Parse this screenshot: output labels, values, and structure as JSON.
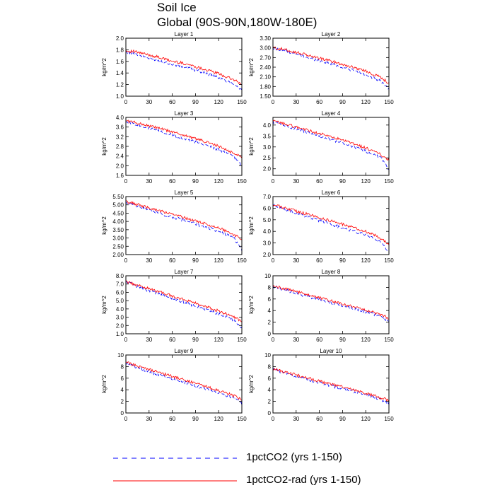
{
  "title": "Soil Ice",
  "subtitle": "Global (90S-90N,180W-180E)",
  "legend": [
    {
      "label": "1pctCO2 (yrs 1-150)",
      "color": "#0000ff",
      "dash": true
    },
    {
      "label": "1pctCO2-rad (yrs 1-150)",
      "color": "#ff0000",
      "dash": false
    }
  ],
  "chart_data": [
    {
      "type": "line",
      "title": "Layer 1",
      "ylabel": "kg/m^2",
      "xlim": [
        0,
        150
      ],
      "ylim": [
        1.0,
        2.0
      ],
      "xticks": [
        "0",
        "30",
        "60",
        "90",
        "120",
        "150"
      ],
      "yticks": [
        "1.0",
        "1.2",
        "1.4",
        "1.6",
        "1.8",
        "2.0"
      ],
      "series": [
        {
          "name": "1pctCO2 (yrs 1-150)",
          "x": [
            0,
            10,
            20,
            30,
            40,
            50,
            60,
            70,
            80,
            90,
            100,
            110,
            120,
            130,
            140,
            150
          ],
          "values": [
            1.76,
            1.74,
            1.7,
            1.65,
            1.63,
            1.59,
            1.55,
            1.52,
            1.49,
            1.45,
            1.41,
            1.36,
            1.32,
            1.26,
            1.22,
            1.1
          ]
        },
        {
          "name": "1pctCO2-rad (yrs 1-150)",
          "x": [
            0,
            10,
            20,
            30,
            40,
            50,
            60,
            70,
            80,
            90,
            100,
            110,
            120,
            130,
            140,
            150
          ],
          "values": [
            1.78,
            1.77,
            1.74,
            1.71,
            1.68,
            1.64,
            1.6,
            1.58,
            1.55,
            1.51,
            1.47,
            1.43,
            1.39,
            1.33,
            1.28,
            1.2
          ]
        }
      ]
    },
    {
      "type": "line",
      "title": "Layer 2",
      "ylabel": "kg/m^2",
      "xlim": [
        0,
        150
      ],
      "ylim": [
        1.5,
        3.3
      ],
      "xticks": [
        "0",
        "30",
        "60",
        "90",
        "120",
        "150"
      ],
      "yticks": [
        "1.50",
        "1.80",
        "2.10",
        "2.40",
        "2.70",
        "3.00",
        "3.30"
      ],
      "series": [
        {
          "name": "1pctCO2 (yrs 1-150)",
          "x": [
            0,
            10,
            20,
            30,
            40,
            50,
            60,
            70,
            80,
            90,
            100,
            110,
            120,
            130,
            140,
            150
          ],
          "values": [
            2.98,
            2.95,
            2.88,
            2.8,
            2.73,
            2.66,
            2.6,
            2.54,
            2.47,
            2.4,
            2.33,
            2.25,
            2.17,
            2.06,
            1.96,
            1.72
          ]
        },
        {
          "name": "1pctCO2-rad (yrs 1-150)",
          "x": [
            0,
            10,
            20,
            30,
            40,
            50,
            60,
            70,
            80,
            90,
            100,
            110,
            120,
            130,
            140,
            150
          ],
          "values": [
            3.0,
            2.97,
            2.92,
            2.86,
            2.8,
            2.74,
            2.68,
            2.62,
            2.56,
            2.49,
            2.42,
            2.36,
            2.28,
            2.18,
            2.08,
            1.9
          ]
        }
      ]
    },
    {
      "type": "line",
      "title": "Layer 3",
      "ylabel": "kg/m^2",
      "xlim": [
        0,
        150
      ],
      "ylim": [
        1.6,
        4.0
      ],
      "xticks": [
        "0",
        "30",
        "60",
        "90",
        "120",
        "150"
      ],
      "yticks": [
        "1.6",
        "2.0",
        "2.4",
        "2.8",
        "3.2",
        "3.6",
        "4.0"
      ],
      "series": [
        {
          "name": "1pctCO2 (yrs 1-150)",
          "x": [
            0,
            10,
            20,
            30,
            40,
            50,
            60,
            70,
            80,
            90,
            100,
            110,
            120,
            130,
            140,
            150
          ],
          "values": [
            3.82,
            3.75,
            3.66,
            3.55,
            3.46,
            3.36,
            3.27,
            3.18,
            3.08,
            2.98,
            2.88,
            2.78,
            2.66,
            2.52,
            2.38,
            2.0
          ]
        },
        {
          "name": "1pctCO2-rad (yrs 1-150)",
          "x": [
            0,
            10,
            20,
            30,
            40,
            50,
            60,
            70,
            80,
            90,
            100,
            110,
            120,
            130,
            140,
            150
          ],
          "values": [
            3.86,
            3.8,
            3.73,
            3.65,
            3.57,
            3.48,
            3.4,
            3.31,
            3.22,
            3.12,
            3.02,
            2.92,
            2.8,
            2.66,
            2.5,
            2.38
          ]
        }
      ]
    },
    {
      "type": "line",
      "title": "Layer 4",
      "ylabel": "kg/m^2",
      "xlim": [
        0,
        150
      ],
      "ylim": [
        1.7,
        4.35
      ],
      "xticks": [
        "0",
        "30",
        "60",
        "90",
        "120",
        "150"
      ],
      "yticks": [
        "2.0",
        "2.5",
        "3.0",
        "3.5",
        "4.0"
      ],
      "series": [
        {
          "name": "1pctCO2 (yrs 1-150)",
          "x": [
            0,
            10,
            20,
            30,
            40,
            50,
            60,
            70,
            80,
            90,
            100,
            110,
            120,
            130,
            140,
            150
          ],
          "values": [
            4.15,
            4.05,
            3.94,
            3.82,
            3.71,
            3.6,
            3.5,
            3.39,
            3.28,
            3.17,
            3.06,
            2.94,
            2.81,
            2.66,
            2.48,
            1.95
          ]
        },
        {
          "name": "1pctCO2-rad (yrs 1-150)",
          "x": [
            0,
            10,
            20,
            30,
            40,
            50,
            60,
            70,
            80,
            90,
            100,
            110,
            120,
            130,
            140,
            150
          ],
          "values": [
            4.18,
            4.1,
            4.01,
            3.91,
            3.81,
            3.71,
            3.61,
            3.51,
            3.41,
            3.3,
            3.19,
            3.07,
            2.95,
            2.8,
            2.64,
            2.4
          ]
        }
      ]
    },
    {
      "type": "line",
      "title": "Layer 5",
      "ylabel": "kg/m^2",
      "xlim": [
        0,
        150
      ],
      "ylim": [
        2.0,
        5.5
      ],
      "xticks": [
        "0",
        "30",
        "60",
        "90",
        "120",
        "150"
      ],
      "yticks": [
        "2.00",
        "2.50",
        "3.00",
        "3.50",
        "4.00",
        "4.50",
        "5.00",
        "5.50"
      ],
      "series": [
        {
          "name": "1pctCO2 (yrs 1-150)",
          "x": [
            0,
            10,
            20,
            30,
            40,
            50,
            60,
            70,
            80,
            90,
            100,
            110,
            120,
            130,
            140,
            150
          ],
          "values": [
            5.15,
            5.0,
            4.84,
            4.68,
            4.54,
            4.4,
            4.26,
            4.13,
            3.99,
            3.85,
            3.7,
            3.56,
            3.4,
            3.2,
            2.98,
            2.25
          ]
        },
        {
          "name": "1pctCO2-rad (yrs 1-150)",
          "x": [
            0,
            10,
            20,
            30,
            40,
            50,
            60,
            70,
            80,
            90,
            100,
            110,
            120,
            130,
            140,
            150
          ],
          "values": [
            5.2,
            5.08,
            4.95,
            4.82,
            4.69,
            4.56,
            4.43,
            4.3,
            4.17,
            4.04,
            3.9,
            3.76,
            3.61,
            3.42,
            3.18,
            2.95
          ]
        }
      ]
    },
    {
      "type": "line",
      "title": "Layer 6",
      "ylabel": "kg/m^2",
      "xlim": [
        0,
        150
      ],
      "ylim": [
        2.0,
        7.0
      ],
      "xticks": [
        "0",
        "30",
        "60",
        "90",
        "120",
        "150"
      ],
      "yticks": [
        "2.0",
        "3.0",
        "4.0",
        "5.0",
        "6.0",
        "7.0"
      ],
      "series": [
        {
          "name": "1pctCO2 (yrs 1-150)",
          "x": [
            0,
            10,
            20,
            30,
            40,
            50,
            60,
            70,
            80,
            90,
            100,
            110,
            120,
            130,
            140,
            150
          ],
          "values": [
            6.25,
            6.02,
            5.8,
            5.56,
            5.35,
            5.14,
            4.94,
            4.74,
            4.53,
            4.32,
            4.11,
            3.9,
            3.67,
            3.4,
            3.08,
            2.25
          ]
        },
        {
          "name": "1pctCO2-rad (yrs 1-150)",
          "x": [
            0,
            10,
            20,
            30,
            40,
            50,
            60,
            70,
            80,
            90,
            100,
            110,
            120,
            130,
            140,
            150
          ],
          "values": [
            6.3,
            6.12,
            5.94,
            5.75,
            5.56,
            5.38,
            5.19,
            5.0,
            4.81,
            4.61,
            4.41,
            4.2,
            3.98,
            3.72,
            3.38,
            2.85
          ]
        }
      ]
    },
    {
      "type": "line",
      "title": "Layer 7",
      "ylabel": "kg/m^2",
      "xlim": [
        0,
        150
      ],
      "ylim": [
        1.0,
        8.0
      ],
      "xticks": [
        "0",
        "30",
        "60",
        "90",
        "120",
        "150"
      ],
      "yticks": [
        "1.0",
        "2.0",
        "3.0",
        "4.0",
        "5.0",
        "6.0",
        "7.0",
        "8.0"
      ],
      "series": [
        {
          "name": "1pctCO2 (yrs 1-150)",
          "x": [
            0,
            10,
            20,
            30,
            40,
            50,
            60,
            70,
            80,
            90,
            100,
            110,
            120,
            130,
            140,
            150
          ],
          "values": [
            7.25,
            6.9,
            6.55,
            6.2,
            5.88,
            5.57,
            5.27,
            4.97,
            4.66,
            4.35,
            4.05,
            3.74,
            3.42,
            3.05,
            2.65,
            1.75
          ]
        },
        {
          "name": "1pctCO2-rad (yrs 1-150)",
          "x": [
            0,
            10,
            20,
            30,
            40,
            50,
            60,
            70,
            80,
            90,
            100,
            110,
            120,
            130,
            140,
            150
          ],
          "values": [
            7.3,
            7.0,
            6.72,
            6.43,
            6.15,
            5.86,
            5.57,
            5.28,
            4.99,
            4.69,
            4.39,
            4.08,
            3.75,
            3.38,
            2.95,
            2.5
          ]
        }
      ]
    },
    {
      "type": "line",
      "title": "Layer 8",
      "ylabel": "kg/m^2",
      "xlim": [
        0,
        150
      ],
      "ylim": [
        0,
        10
      ],
      "xticks": [
        "0",
        "30",
        "60",
        "90",
        "120",
        "150"
      ],
      "yticks": [
        "0",
        "2",
        "4",
        "6",
        "8",
        "10"
      ],
      "series": [
        {
          "name": "1pctCO2 (yrs 1-150)",
          "x": [
            0,
            10,
            20,
            30,
            40,
            50,
            60,
            70,
            80,
            90,
            100,
            110,
            120,
            130,
            140,
            150
          ],
          "values": [
            8.2,
            7.8,
            7.4,
            7.0,
            6.6,
            6.25,
            5.9,
            5.55,
            5.2,
            4.85,
            4.5,
            4.15,
            3.8,
            3.4,
            2.95,
            2.0
          ]
        },
        {
          "name": "1pctCO2-rad (yrs 1-150)",
          "x": [
            0,
            10,
            20,
            30,
            40,
            50,
            60,
            70,
            80,
            90,
            100,
            110,
            120,
            130,
            140,
            150
          ],
          "values": [
            8.3,
            7.95,
            7.6,
            7.25,
            6.9,
            6.55,
            6.2,
            5.85,
            5.5,
            5.15,
            4.8,
            4.45,
            4.1,
            3.7,
            3.25,
            2.7
          ]
        }
      ]
    },
    {
      "type": "line",
      "title": "Layer 9",
      "ylabel": "kg/m^2",
      "xlim": [
        0,
        150
      ],
      "ylim": [
        0,
        10
      ],
      "xticks": [
        "0",
        "30",
        "60",
        "90",
        "120",
        "150"
      ],
      "yticks": [
        "0",
        "2",
        "4",
        "6",
        "8",
        "10"
      ],
      "series": [
        {
          "name": "1pctCO2 (yrs 1-150)",
          "x": [
            0,
            10,
            20,
            30,
            40,
            50,
            60,
            70,
            80,
            90,
            100,
            110,
            120,
            130,
            140,
            150
          ],
          "values": [
            8.6,
            8.1,
            7.6,
            7.1,
            6.7,
            6.3,
            5.9,
            5.5,
            5.1,
            4.7,
            4.3,
            3.9,
            3.5,
            3.05,
            2.6,
            1.6
          ]
        },
        {
          "name": "1pctCO2-rad (yrs 1-150)",
          "x": [
            0,
            10,
            20,
            30,
            40,
            50,
            60,
            70,
            80,
            90,
            100,
            110,
            120,
            130,
            140,
            150
          ],
          "values": [
            8.7,
            8.3,
            7.9,
            7.5,
            7.1,
            6.7,
            6.3,
            5.9,
            5.5,
            5.1,
            4.7,
            4.3,
            3.9,
            3.45,
            2.95,
            2.3
          ]
        }
      ]
    },
    {
      "type": "line",
      "title": "Layer 10",
      "ylabel": "kg/m^2",
      "xlim": [
        0,
        150
      ],
      "ylim": [
        0,
        10
      ],
      "xticks": [
        "0",
        "30",
        "60",
        "90",
        "120",
        "150"
      ],
      "yticks": [
        "0",
        "2",
        "4",
        "6",
        "8",
        "10"
      ],
      "series": [
        {
          "name": "1pctCO2 (yrs 1-150)",
          "x": [
            0,
            10,
            20,
            30,
            40,
            50,
            60,
            70,
            80,
            90,
            100,
            110,
            120,
            130,
            140,
            150
          ],
          "values": [
            7.5,
            7.1,
            6.7,
            6.3,
            5.95,
            5.6,
            5.25,
            4.9,
            4.55,
            4.2,
            3.85,
            3.5,
            3.15,
            2.75,
            2.35,
            1.5
          ]
        },
        {
          "name": "1pctCO2-rad (yrs 1-150)",
          "x": [
            0,
            10,
            20,
            30,
            40,
            50,
            60,
            70,
            80,
            90,
            100,
            110,
            120,
            130,
            140,
            150
          ],
          "values": [
            7.6,
            7.25,
            6.9,
            6.55,
            6.2,
            5.85,
            5.5,
            5.15,
            4.8,
            4.45,
            4.1,
            3.75,
            3.4,
            3.0,
            2.6,
            2.1
          ]
        }
      ]
    }
  ]
}
